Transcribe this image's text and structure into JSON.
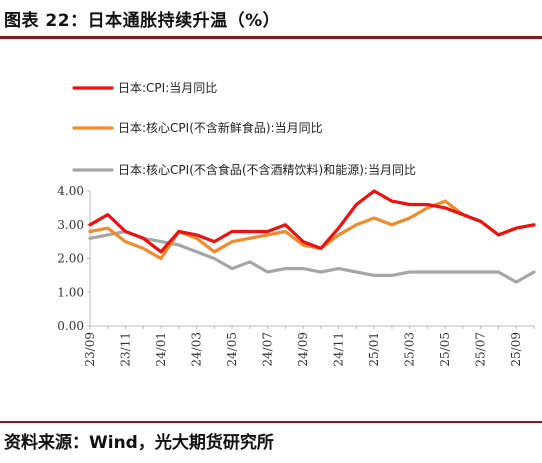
{
  "header": {
    "title": "图表 22：日本通胀持续升温（%）"
  },
  "footer": {
    "source": "资料来源：Wind，光大期货研究所"
  },
  "colors": {
    "rule": "#8b1a1a",
    "axis": "#bbbbbb"
  },
  "chart_data": {
    "type": "line",
    "title": "",
    "xlabel": "",
    "ylabel": "",
    "ylim": [
      0,
      4
    ],
    "yticks": [
      "0.00",
      "1.00",
      "2.00",
      "3.00",
      "4.00"
    ],
    "grid": false,
    "legend_position": "top-left",
    "x": [
      "23/09",
      "23/10",
      "23/11",
      "23/12",
      "24/01",
      "24/02",
      "24/03",
      "24/04",
      "24/05",
      "24/06",
      "24/07",
      "24/08",
      "24/09",
      "24/10",
      "24/11",
      "24/12",
      "25/01",
      "25/02",
      "25/03",
      "25/04",
      "25/05",
      "25/06",
      "25/07",
      "25/08",
      "25/09",
      "25/10"
    ],
    "xtick_labels": [
      "23/09",
      "23/11",
      "24/01",
      "24/03",
      "24/05",
      "24/07",
      "24/09",
      "24/11",
      "25/01",
      "25/03",
      "25/05",
      "25/07",
      "25/09"
    ],
    "series": [
      {
        "name": "日本:CPI:当月同比",
        "color": "#ee1111",
        "values": [
          3.0,
          3.3,
          2.8,
          2.6,
          2.2,
          2.8,
          2.7,
          2.5,
          2.8,
          2.8,
          2.8,
          3.0,
          2.5,
          2.3,
          2.9,
          3.6,
          4.0,
          3.7,
          3.6,
          3.6,
          3.5,
          3.3,
          3.1,
          2.7,
          2.9,
          3.0
        ]
      },
      {
        "name": "日本:核心CPI(不含新鲜食品):当月同比",
        "color": "#f08a2a",
        "values": [
          2.8,
          2.9,
          2.5,
          2.3,
          2.0,
          2.8,
          2.6,
          2.2,
          2.5,
          2.6,
          2.7,
          2.8,
          2.4,
          2.3,
          2.7,
          3.0,
          3.2,
          3.0,
          3.2,
          3.5,
          3.7,
          3.3,
          3.1,
          2.7,
          2.9,
          3.0
        ]
      },
      {
        "name": "日本:核心CPI(不含食品(不含酒精饮料)和能源):当月同比",
        "color": "#a6a6a6",
        "values": [
          2.6,
          2.7,
          2.8,
          2.6,
          2.5,
          2.4,
          2.2,
          2.0,
          1.7,
          1.9,
          1.6,
          1.7,
          1.7,
          1.6,
          1.7,
          1.6,
          1.5,
          1.5,
          1.6,
          1.6,
          1.6,
          1.6,
          1.6,
          1.6,
          1.3,
          1.6
        ]
      }
    ]
  }
}
